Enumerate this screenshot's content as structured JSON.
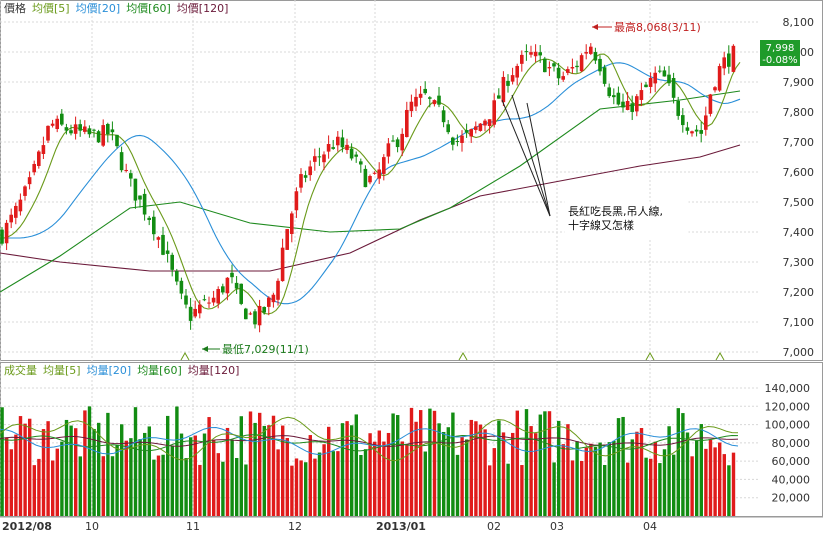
{
  "price_panel": {
    "legend": [
      {
        "label": "價格",
        "color": "#333333"
      },
      {
        "label": "均價[5]",
        "color": "#6a9a1a"
      },
      {
        "label": "均價[20]",
        "color": "#2a8fd8"
      },
      {
        "label": "均價[60]",
        "color": "#1e8a1e"
      },
      {
        "label": "均價[120]",
        "color": "#6b1a3a"
      }
    ],
    "price_ticks": [
      "8,100",
      "8,000",
      "7,900",
      "7,800",
      "7,700",
      "7,600",
      "7,500",
      "7,400",
      "7,300",
      "7,200",
      "7,100",
      "7,000"
    ],
    "current_price": "7,998",
    "current_change": "-0.08%",
    "high_label": "最高8,068(3/11)",
    "low_label": "最低7,029(11/1)",
    "annotation": "長紅吃長黑,吊人線,十字線又怎樣"
  },
  "volume_panel": {
    "legend": [
      {
        "label": "成交量",
        "color": "#6a9a1a"
      },
      {
        "label": "均量[5]",
        "color": "#6a9a1a"
      },
      {
        "label": "均量[20]",
        "color": "#2a8fd8"
      },
      {
        "label": "均量[60]",
        "color": "#1e8a1e"
      },
      {
        "label": "均量[120]",
        "color": "#6b1a3a"
      }
    ],
    "volume_ticks": [
      "140,000",
      "120,000",
      "100,000",
      "80,000",
      "60,000",
      "40,000",
      "20,000"
    ]
  },
  "x_axis": [
    "2012/08",
    "10",
    "11",
    "12",
    "2013/01",
    "02",
    "03",
    "04"
  ],
  "chart_data": {
    "type": "candlestick",
    "price_axis": {
      "min": 7000,
      "max": 8100
    },
    "volume_axis": {
      "min": 0,
      "max": 140000
    },
    "high": {
      "value": 8068,
      "date": "3/11"
    },
    "low": {
      "value": 7029,
      "date": "11/1"
    },
    "colors": {
      "up": "#e01b1b",
      "down": "#128c12",
      "ma5": "#6a9a1a",
      "ma20": "#2a8fd8",
      "ma60": "#1e8a1e",
      "ma120": "#6b1a3a"
    }
  }
}
